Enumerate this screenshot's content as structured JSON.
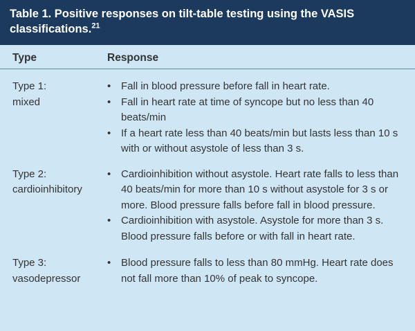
{
  "header": {
    "title": "Table 1. Positive responses on tilt-table testing using the VASIS classifications.",
    "ref": "21"
  },
  "table": {
    "columns": [
      "Type",
      "Response"
    ],
    "rows": [
      {
        "type": [
          "Type 1:",
          "mixed"
        ],
        "responses": [
          "Fall in blood pressure before fall in heart rate.",
          "Fall in heart rate at time of syncope but no less than 40 beats/min",
          "If a heart rate less than 40 beats/min but lasts less than 10 s with or without asystole of less than 3 s."
        ]
      },
      {
        "type": [
          "Type 2:",
          "cardioinhibitory"
        ],
        "responses": [
          "Cardioinhibition without asystole. Heart rate falls to less than 40 beats/min for more than 10 s without asystole for 3 s or more. Blood pressure falls before fall in blood pressure.",
          "Cardioinhibition with asystole. Asystole for more than 3 s. Blood pressure falls before or with fall in heart rate."
        ]
      },
      {
        "type": [
          "Type 3:",
          "vasodepressor"
        ],
        "responses": [
          "Blood pressure falls to less than 80 mmHg. Heart rate does not fall more than 10% of peak to syncope."
        ]
      }
    ]
  }
}
